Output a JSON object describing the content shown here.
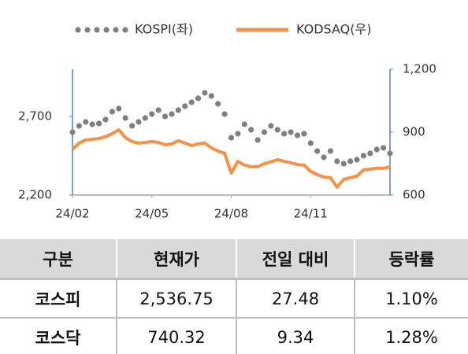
{
  "chart_data": {
    "type": "line",
    "categories": [
      "24/02",
      null,
      null,
      null,
      null,
      null,
      null,
      null,
      null,
      null,
      null,
      null,
      "24/05",
      null,
      null,
      null,
      null,
      null,
      null,
      null,
      null,
      null,
      null,
      null,
      "24/08",
      null,
      null,
      null,
      null,
      null,
      null,
      null,
      null,
      null,
      null,
      null,
      "24/11",
      null,
      null,
      null,
      null,
      null,
      null,
      null,
      null,
      null,
      null,
      null,
      null
    ],
    "series": [
      {
        "name": "KOSPI(좌)",
        "color": "#7f7f7f",
        "marker": "dots",
        "axis": "y",
        "values": [
          2600,
          2640,
          2665,
          2650,
          2655,
          2680,
          2730,
          2750,
          2690,
          2640,
          2665,
          2690,
          2715,
          2740,
          2700,
          2715,
          2740,
          2765,
          2790,
          2815,
          2850,
          2830,
          2780,
          2715,
          2565,
          2590,
          2650,
          2615,
          2550,
          2600,
          2640,
          2615,
          2590,
          2600,
          2580,
          2590,
          2530,
          2480,
          2440,
          2480,
          2415,
          2400,
          2415,
          2425,
          2450,
          2465,
          2490,
          2500,
          2465
        ]
      },
      {
        "name": "KODSAQ(우)",
        "color": "#f4924a",
        "marker": "line",
        "axis": "y2",
        "values": [
          818,
          848,
          863,
          866,
          870,
          878,
          893,
          911,
          874,
          855,
          848,
          851,
          855,
          851,
          840,
          844,
          859,
          848,
          836,
          844,
          848,
          825,
          810,
          799,
          705,
          761,
          743,
          735,
          735,
          750,
          758,
          769,
          761,
          754,
          746,
          743,
          713,
          698,
          686,
          683,
          638,
          675,
          683,
          690,
          720,
          724,
          728,
          728,
          735
        ]
      }
    ],
    "ylim": [
      2200,
      3000
    ],
    "yticks": [
      {
        "value": 2200,
        "label": "2,200"
      },
      {
        "value": 2700,
        "label": "2,700"
      }
    ],
    "y2lim": [
      600,
      1200
    ],
    "y2ticks": [
      600,
      900,
      {
        "value": 1200,
        "label": "1,200"
      }
    ],
    "legend": "top",
    "axis_color": "#4f81bd"
  },
  "table": {
    "columns": [
      "구분",
      "현재가",
      "전일 대비",
      "등락률"
    ],
    "rows": [
      [
        "코스피",
        "2,536.75",
        "27.48",
        "1.10%"
      ],
      [
        "코스닥",
        "740.32",
        "9.34",
        "1.28%"
      ]
    ]
  }
}
